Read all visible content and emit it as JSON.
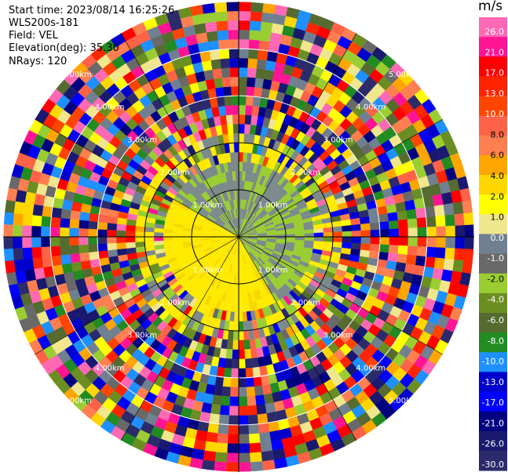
{
  "header": {
    "start_time": "Start time: 2023/08/14 16:25:26",
    "instrument": "WLS200s-181",
    "field": "Field: VEL",
    "elevation": "Elevation(deg): 35.30",
    "nrays": "NRays: 120"
  },
  "colorbar": {
    "unit": "m/s",
    "labels": [
      "26.0",
      "21.0",
      "17.0",
      "13.0",
      "10.0",
      "8.0",
      "6.0",
      "4.0",
      "2.0",
      "1.0",
      "0.0",
      "-1.0",
      "-2.0",
      "-4.0",
      "-6.0",
      "-8.0",
      "-10.0",
      "-13.0",
      "-17.0",
      "-21.0",
      "-26.0",
      "-30.0"
    ],
    "colors": [
      "#ff69b4",
      "#ff1493",
      "#ff0000",
      "#ff2400",
      "#ff4500",
      "#ff6347",
      "#ff7f50",
      "#ffa500",
      "#ffd700",
      "#ffff00",
      "#f0e68c",
      "#708090",
      "#696969",
      "#9acd32",
      "#6b8e23",
      "#556b2f",
      "#228b22",
      "#1e90ff",
      "#0000cd",
      "#0000ff",
      "#000080",
      "#191970",
      "#2b2b6b"
    ]
  },
  "chart_data": {
    "type": "heatmap",
    "projection": "polar PPI",
    "field": "VEL",
    "units": "m/s",
    "nrays": 120,
    "range_rings_km": [
      1.0,
      2.0,
      3.0,
      4.0,
      5.0
    ],
    "ring_labels": [
      "1.00km",
      "2.00km",
      "3.00km",
      "4.00km",
      "5.00km"
    ],
    "color_scale_min": -30.0,
    "color_scale_max": 26.0,
    "near_field_pattern": "yellow (+2 to +4 m/s) to the west/north-west, olive and grey (-2 to 0 m/s) to the east/south within about 1.5 km; noisy mixed values beyond"
  }
}
